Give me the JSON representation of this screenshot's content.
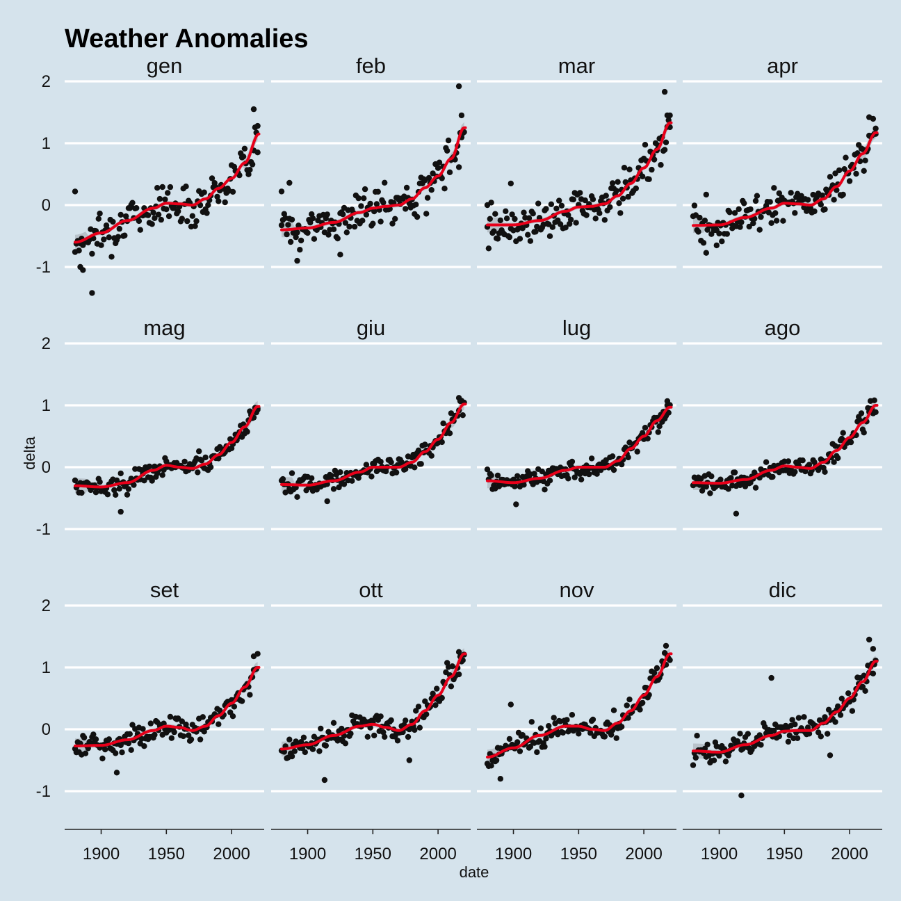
{
  "chart_data": {
    "type": "scatter",
    "title": "Weather Anomalies",
    "xlabel": "date",
    "ylabel": "delta",
    "xlim": [
      1872,
      2025
    ],
    "ylim": [
      -1.55,
      2.0
    ],
    "x_ticks": [
      1900,
      1950,
      2000
    ],
    "y_ticks": [
      -1,
      0,
      1,
      2
    ],
    "grid": "horizontal major",
    "smooth": "loess with confidence band",
    "colors": {
      "background": "#d5e3ec",
      "grid": "#ffffff",
      "points": "#111111",
      "smooth": "#e8001a",
      "band": "#b3bcc4"
    },
    "panels": [
      {
        "label": "gen",
        "smooth": [
          [
            1880,
            -0.6
          ],
          [
            1900,
            -0.45
          ],
          [
            1920,
            -0.25
          ],
          [
            1940,
            -0.05
          ],
          [
            1950,
            0.03
          ],
          [
            1960,
            0.02
          ],
          [
            1970,
            0.0
          ],
          [
            1980,
            0.1
          ],
          [
            1990,
            0.27
          ],
          [
            2000,
            0.43
          ],
          [
            2010,
            0.68
          ],
          [
            2021,
            1.15
          ]
        ],
        "outliers": [
          [
            1880,
            0.22
          ],
          [
            1884,
            -1.0
          ],
          [
            1886,
            -1.05
          ],
          [
            1893,
            -1.42
          ],
          [
            2017,
            1.55
          ],
          [
            2020,
            1.28
          ]
        ]
      },
      {
        "label": "feb",
        "smooth": [
          [
            1880,
            -0.4
          ],
          [
            1900,
            -0.37
          ],
          [
            1920,
            -0.28
          ],
          [
            1940,
            -0.12
          ],
          [
            1950,
            -0.05
          ],
          [
            1960,
            -0.02
          ],
          [
            1970,
            0.0
          ],
          [
            1980,
            0.1
          ],
          [
            1990,
            0.28
          ],
          [
            2000,
            0.47
          ],
          [
            2010,
            0.75
          ],
          [
            2020,
            1.25
          ]
        ],
        "outliers": [
          [
            1880,
            0.22
          ],
          [
            1886,
            0.36
          ],
          [
            1892,
            -0.9
          ],
          [
            1925,
            -0.8
          ],
          [
            2016,
            1.92
          ],
          [
            2018,
            1.45
          ]
        ]
      },
      {
        "label": "mar",
        "smooth": [
          [
            1880,
            -0.32
          ],
          [
            1900,
            -0.32
          ],
          [
            1920,
            -0.25
          ],
          [
            1940,
            -0.1
          ],
          [
            1950,
            -0.03
          ],
          [
            1960,
            -0.02
          ],
          [
            1970,
            0.02
          ],
          [
            1980,
            0.15
          ],
          [
            1990,
            0.35
          ],
          [
            2000,
            0.6
          ],
          [
            2010,
            0.9
          ],
          [
            2020,
            1.33
          ]
        ],
        "outliers": [
          [
            1880,
            0.0
          ],
          [
            1898,
            0.35
          ],
          [
            2016,
            1.83
          ],
          [
            2018,
            1.45
          ],
          [
            2020,
            1.45
          ]
        ]
      },
      {
        "label": "apr",
        "smooth": [
          [
            1880,
            -0.33
          ],
          [
            1900,
            -0.32
          ],
          [
            1920,
            -0.2
          ],
          [
            1940,
            -0.05
          ],
          [
            1950,
            0.03
          ],
          [
            1960,
            0.02
          ],
          [
            1970,
            0.0
          ],
          [
            1980,
            0.1
          ],
          [
            1990,
            0.3
          ],
          [
            2000,
            0.55
          ],
          [
            2010,
            0.83
          ],
          [
            2020,
            1.17
          ]
        ],
        "outliers": [
          [
            1890,
            0.17
          ],
          [
            1898,
            -0.65
          ],
          [
            2015,
            1.42
          ],
          [
            2020,
            1.15
          ]
        ]
      },
      {
        "label": "mag",
        "smooth": [
          [
            1880,
            -0.3
          ],
          [
            1900,
            -0.32
          ],
          [
            1920,
            -0.25
          ],
          [
            1940,
            -0.05
          ],
          [
            1950,
            0.03
          ],
          [
            1960,
            0.0
          ],
          [
            1970,
            -0.02
          ],
          [
            1980,
            0.05
          ],
          [
            1990,
            0.2
          ],
          [
            2000,
            0.4
          ],
          [
            2010,
            0.65
          ],
          [
            2020,
            0.98
          ]
        ],
        "outliers": [
          [
            1915,
            -0.72
          ],
          [
            2020,
            0.95
          ]
        ]
      },
      {
        "label": "giu",
        "smooth": [
          [
            1880,
            -0.28
          ],
          [
            1900,
            -0.29
          ],
          [
            1920,
            -0.22
          ],
          [
            1940,
            -0.08
          ],
          [
            1950,
            0.0
          ],
          [
            1960,
            0.0
          ],
          [
            1970,
            0.0
          ],
          [
            1980,
            0.08
          ],
          [
            1990,
            0.25
          ],
          [
            2000,
            0.45
          ],
          [
            2010,
            0.72
          ],
          [
            2020,
            1.02
          ]
        ],
        "outliers": [
          [
            1915,
            -0.55
          ],
          [
            2016,
            1.12
          ]
        ]
      },
      {
        "label": "lug",
        "smooth": [
          [
            1880,
            -0.22
          ],
          [
            1900,
            -0.25
          ],
          [
            1920,
            -0.18
          ],
          [
            1940,
            -0.05
          ],
          [
            1950,
            0.0
          ],
          [
            1960,
            0.0
          ],
          [
            1970,
            0.0
          ],
          [
            1980,
            0.1
          ],
          [
            1990,
            0.3
          ],
          [
            2000,
            0.5
          ],
          [
            2010,
            0.75
          ],
          [
            2020,
            0.97
          ]
        ],
        "outliers": [
          [
            1902,
            -0.6
          ],
          [
            2018,
            1.0
          ]
        ]
      },
      {
        "label": "ago",
        "smooth": [
          [
            1880,
            -0.25
          ],
          [
            1900,
            -0.26
          ],
          [
            1920,
            -0.2
          ],
          [
            1940,
            -0.05
          ],
          [
            1950,
            0.02
          ],
          [
            1960,
            0.0
          ],
          [
            1970,
            -0.02
          ],
          [
            1980,
            0.08
          ],
          [
            1990,
            0.27
          ],
          [
            2000,
            0.48
          ],
          [
            2010,
            0.72
          ],
          [
            2020,
            1.0
          ]
        ],
        "outliers": [
          [
            1913,
            -0.75
          ],
          [
            2016,
            1.07
          ]
        ]
      },
      {
        "label": "set",
        "smooth": [
          [
            1880,
            -0.27
          ],
          [
            1900,
            -0.26
          ],
          [
            1920,
            -0.17
          ],
          [
            1940,
            -0.02
          ],
          [
            1950,
            0.05
          ],
          [
            1960,
            0.03
          ],
          [
            1970,
            -0.02
          ],
          [
            1980,
            0.05
          ],
          [
            1990,
            0.22
          ],
          [
            2000,
            0.42
          ],
          [
            2010,
            0.68
          ],
          [
            2020,
            1.0
          ]
        ],
        "outliers": [
          [
            1912,
            -0.7
          ],
          [
            2017,
            1.18
          ]
        ]
      },
      {
        "label": "ott",
        "smooth": [
          [
            1880,
            -0.32
          ],
          [
            1900,
            -0.25
          ],
          [
            1920,
            -0.1
          ],
          [
            1940,
            0.05
          ],
          [
            1950,
            0.08
          ],
          [
            1960,
            0.03
          ],
          [
            1970,
            -0.02
          ],
          [
            1980,
            0.08
          ],
          [
            1990,
            0.3
          ],
          [
            2000,
            0.55
          ],
          [
            2010,
            0.85
          ],
          [
            2020,
            1.22
          ]
        ],
        "outliers": [
          [
            1913,
            -0.82
          ],
          [
            1978,
            -0.5
          ],
          [
            2016,
            1.25
          ]
        ]
      },
      {
        "label": "nov",
        "smooth": [
          [
            1880,
            -0.45
          ],
          [
            1900,
            -0.3
          ],
          [
            1920,
            -0.1
          ],
          [
            1940,
            0.05
          ],
          [
            1950,
            0.05
          ],
          [
            1960,
            0.0
          ],
          [
            1970,
            -0.02
          ],
          [
            1980,
            0.1
          ],
          [
            1990,
            0.3
          ],
          [
            2000,
            0.55
          ],
          [
            2010,
            0.85
          ],
          [
            2020,
            1.22
          ]
        ],
        "outliers": [
          [
            1890,
            -0.8
          ],
          [
            1898,
            0.4
          ],
          [
            2017,
            1.35
          ]
        ]
      },
      {
        "label": "dic",
        "smooth": [
          [
            1880,
            -0.35
          ],
          [
            1900,
            -0.37
          ],
          [
            1920,
            -0.25
          ],
          [
            1940,
            -0.1
          ],
          [
            1950,
            -0.03
          ],
          [
            1960,
            -0.02
          ],
          [
            1970,
            -0.02
          ],
          [
            1980,
            0.1
          ],
          [
            1990,
            0.28
          ],
          [
            2000,
            0.5
          ],
          [
            2010,
            0.77
          ],
          [
            2020,
            1.1
          ]
        ],
        "outliers": [
          [
            1917,
            -1.07
          ],
          [
            1940,
            0.83
          ],
          [
            1985,
            -0.42
          ],
          [
            2015,
            1.45
          ],
          [
            2018,
            1.3
          ]
        ]
      }
    ]
  }
}
